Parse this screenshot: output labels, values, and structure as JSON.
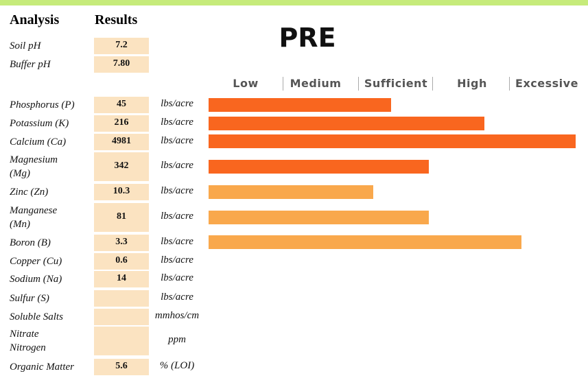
{
  "header": {
    "analysis": "Analysis",
    "results": "Results",
    "title": "PRE"
  },
  "ph": [
    {
      "analysis": "Soil pH",
      "result": 7.2
    },
    {
      "analysis": "Buffer pH",
      "result": "7.80"
    }
  ],
  "scale": [
    "Low",
    "Medium",
    "Sufficient",
    "High",
    "Excessive"
  ],
  "rows": [
    {
      "analysis": [
        "Phosphorus (P)"
      ],
      "result": 45,
      "unit": "lbs/acre"
    },
    {
      "analysis": [
        "Potassium (K)"
      ],
      "result": 216,
      "unit": "lbs/acre"
    },
    {
      "analysis": [
        "Calcium (Ca)"
      ],
      "result": 4981,
      "unit": "lbs/acre"
    },
    {
      "analysis": [
        "Magnesium",
        "(Mg)"
      ],
      "result": 342,
      "unit": "lbs/acre"
    },
    {
      "analysis": [
        "Zinc (Zn)"
      ],
      "result": 10.3,
      "unit": "lbs/acre"
    },
    {
      "analysis": [
        "Manganese",
        "(Mn)"
      ],
      "result": 81,
      "unit": "lbs/acre"
    },
    {
      "analysis": [
        "Boron (B)"
      ],
      "result": 3.3,
      "unit": "lbs/acre"
    },
    {
      "analysis": [
        "Copper (Cu)"
      ],
      "result": 0.6,
      "unit": "lbs/acre"
    },
    {
      "analysis": [
        "Sodium (Na)"
      ],
      "result": 14,
      "unit": "lbs/acre"
    },
    {
      "analysis": [
        "Sulfur (S)"
      ],
      "unit": "lbs/acre"
    },
    {
      "analysis": [
        "Soluble Salts"
      ],
      "unit": "mmhos/cm"
    },
    {
      "analysis": [
        "Nitrate",
        "Nitrogen"
      ],
      "unit": "ppm"
    },
    {
      "analysis": [
        "Organic Matter"
      ],
      "result": 5.6,
      "unit": "% (LOI)"
    }
  ]
}
